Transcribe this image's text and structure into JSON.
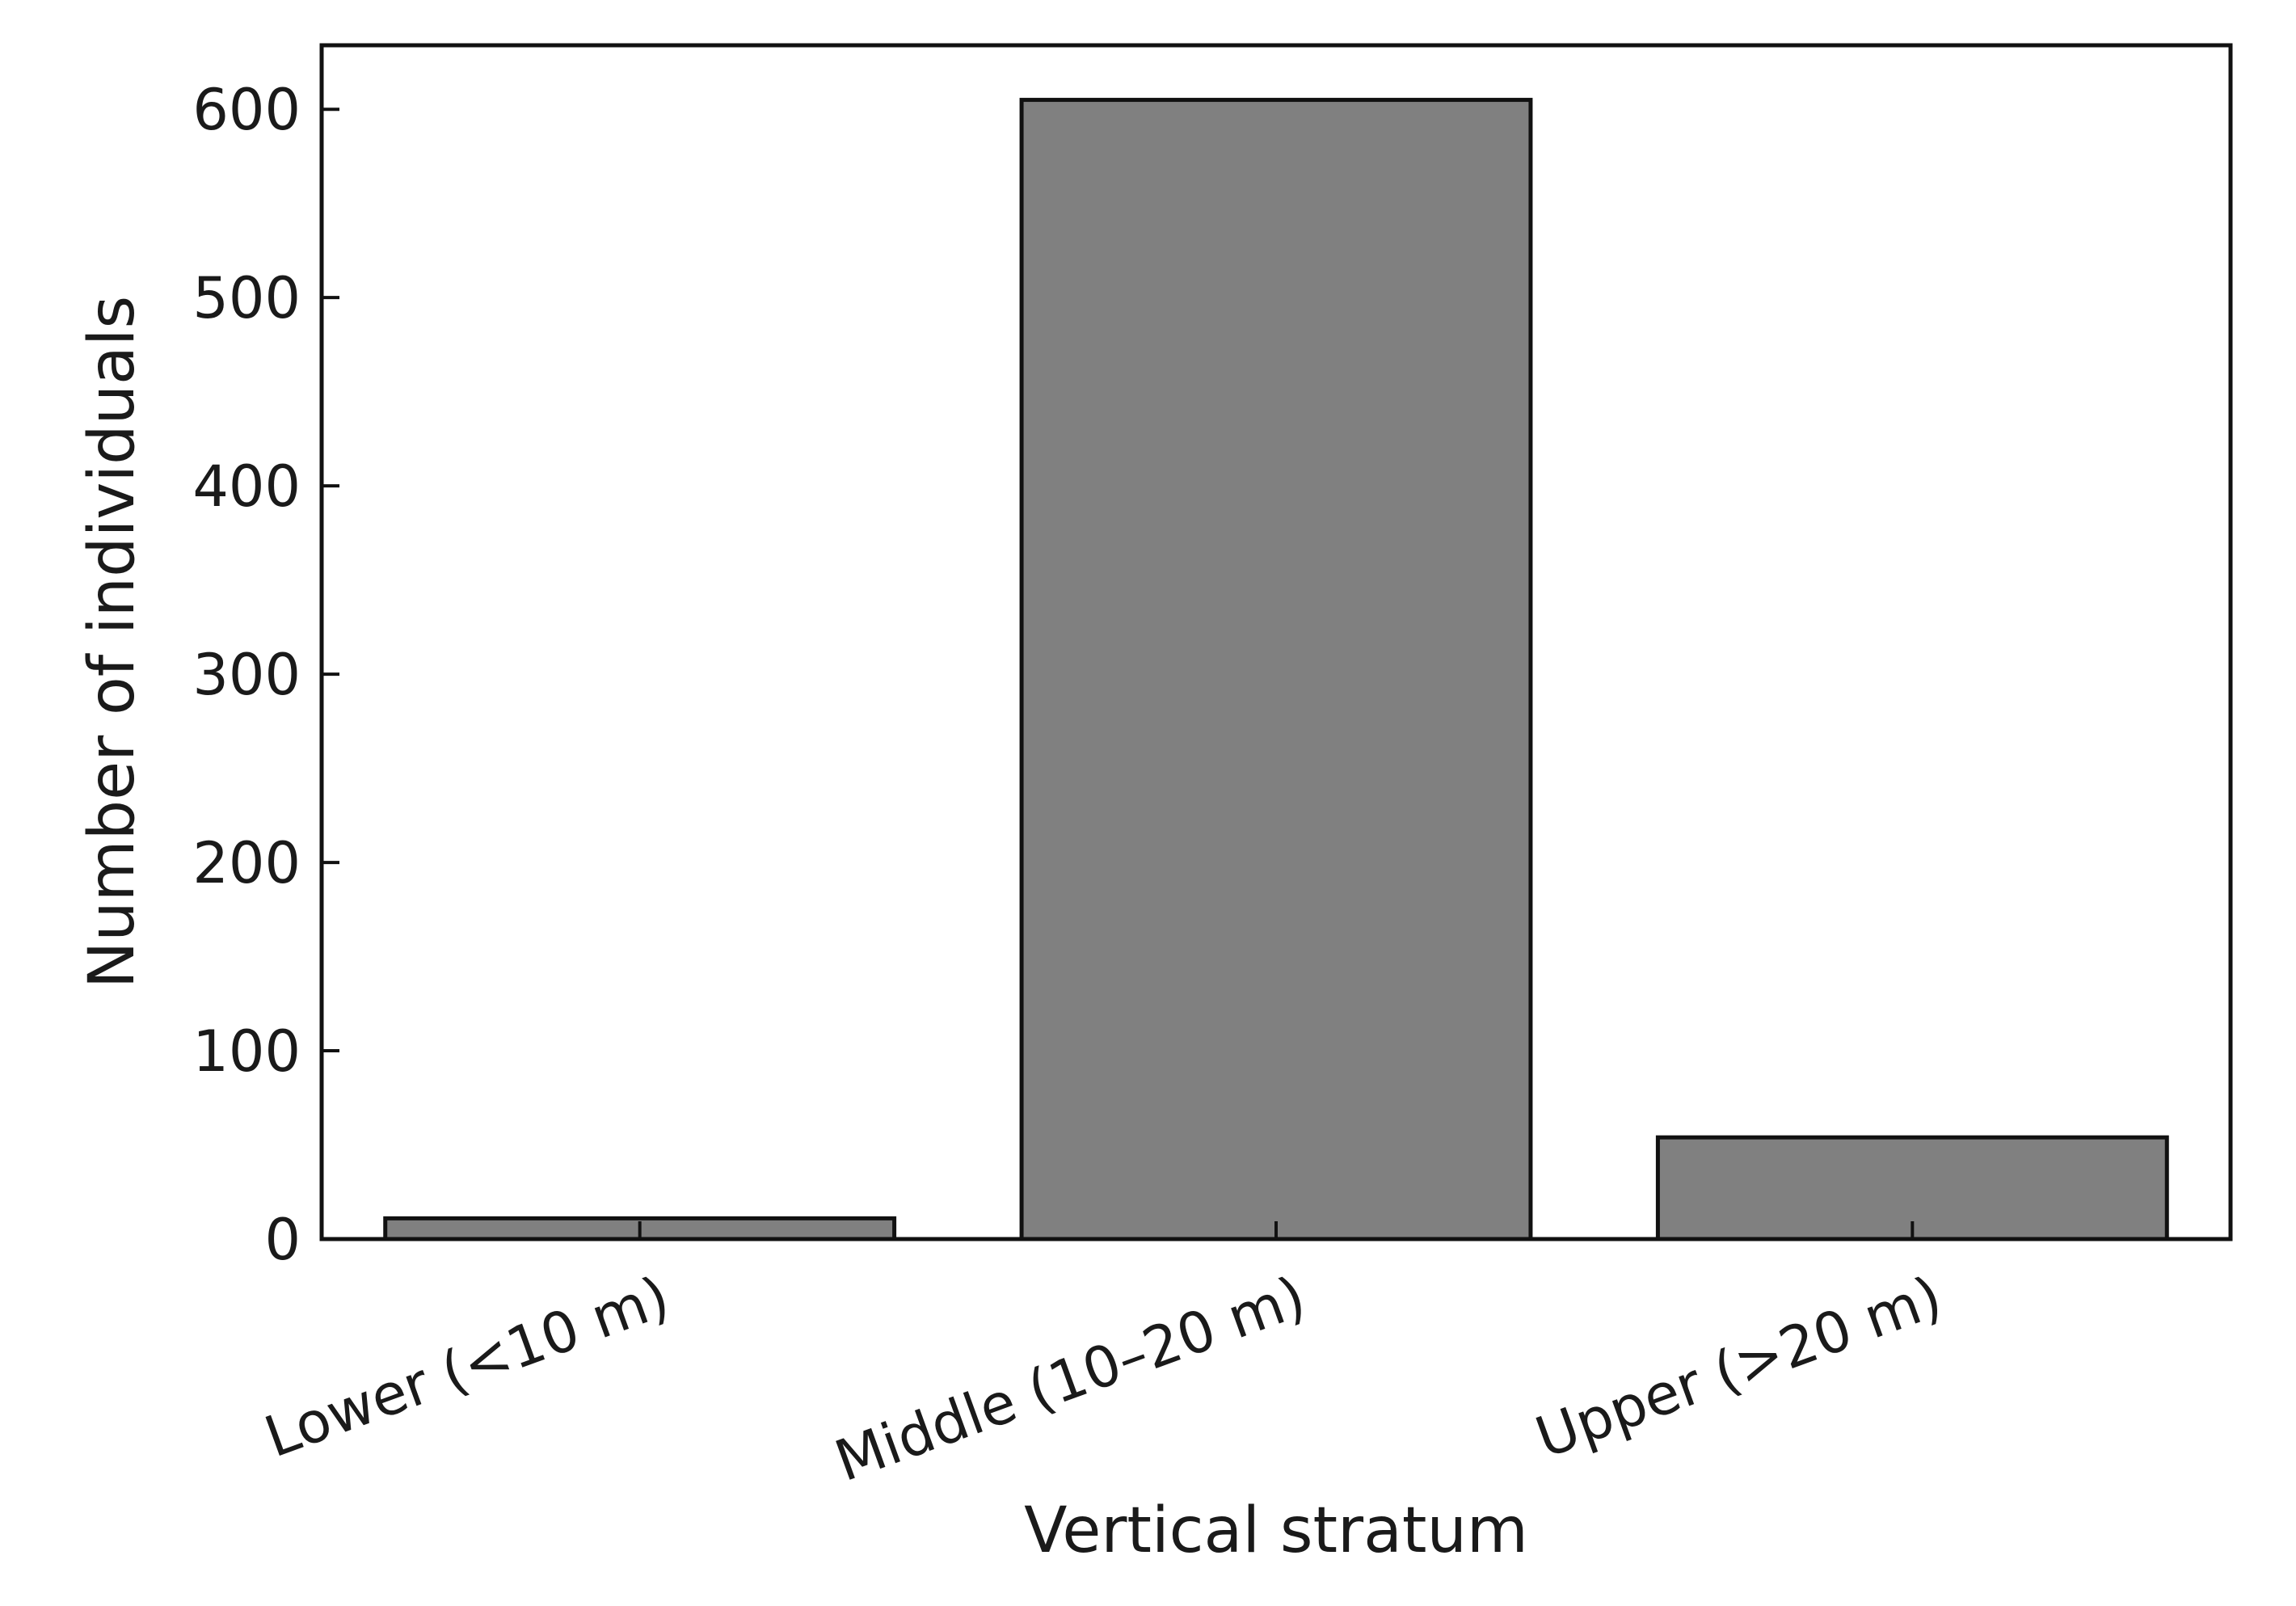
{
  "chart_data": {
    "type": "bar",
    "title": "",
    "xlabel": "Vertical stratum",
    "ylabel": "Number of individuals",
    "categories": [
      "Lower (<10 m)",
      "Middle (10–20 m)",
      "Upper (>20 m)"
    ],
    "values": [
      11,
      605,
      54
    ],
    "ylim": [
      0,
      634
    ],
    "yticks": [
      0,
      100,
      200,
      300,
      400,
      500,
      600
    ],
    "grid": false,
    "bar_color": "#808080",
    "edge_color": "#111111"
  }
}
